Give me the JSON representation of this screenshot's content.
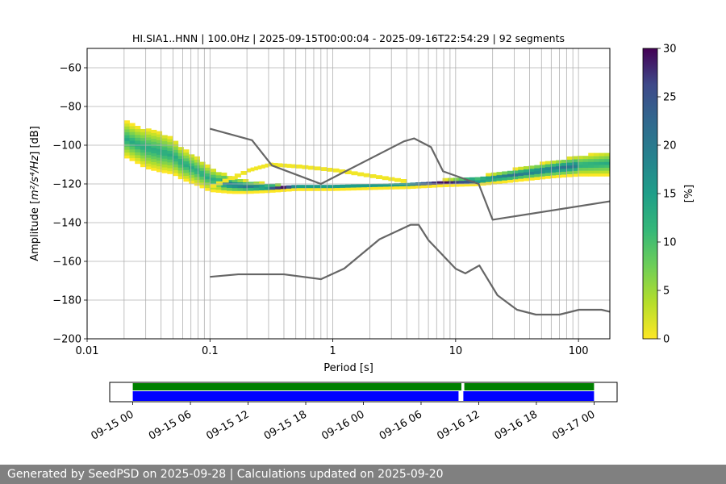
{
  "chart_data": [
    {
      "type": "heatmap",
      "title": "HI.SIA1..HNN | 100.0Hz | 2025-09-15T00:00:04 - 2025-09-16T22:54:29 | 92 segments",
      "xlabel": "Period [s]",
      "ylabel_prefix": "Amplitude [",
      "ylabel_suffix": "] [dB]",
      "ylabel_units": "m²/s⁴/Hz",
      "x_scale": "log",
      "xlim": [
        0.01,
        180
      ],
      "ylim": [
        -200,
        -50
      ],
      "x_ticks": [
        {
          "value": 0.01,
          "label": "0.01"
        },
        {
          "value": 0.1,
          "label": "0.1"
        },
        {
          "value": 1,
          "label": "1"
        },
        {
          "value": 10,
          "label": "10"
        },
        {
          "value": 100,
          "label": "100"
        }
      ],
      "y_ticks": [
        {
          "value": -60,
          "label": "−60"
        },
        {
          "value": -80,
          "label": "−80"
        },
        {
          "value": -100,
          "label": "−100"
        },
        {
          "value": -120,
          "label": "−120"
        },
        {
          "value": -140,
          "label": "−140"
        },
        {
          "value": -160,
          "label": "−160"
        },
        {
          "value": -180,
          "label": "−180"
        },
        {
          "value": -200,
          "label": "−200"
        }
      ],
      "grid": "vertical lines at every log-decade subdivision; horizontal at y ticks",
      "colormap": "viridis_r",
      "colorbar": {
        "label": "[%]",
        "range": [
          0,
          30
        ],
        "ticks": [
          {
            "value": 0,
            "label": "0"
          },
          {
            "value": 5,
            "label": "5"
          },
          {
            "value": 10,
            "label": "10"
          },
          {
            "value": 15,
            "label": "15"
          },
          {
            "value": 20,
            "label": "20"
          },
          {
            "value": 25,
            "label": "25"
          },
          {
            "value": 30,
            "label": "30"
          }
        ]
      },
      "psd_density": [
        {
          "period": 0.02,
          "mode": -97,
          "spread": 9
        },
        {
          "period": 0.025,
          "mode": -100,
          "spread": 9
        },
        {
          "period": 0.03,
          "mode": -102,
          "spread": 10
        },
        {
          "period": 0.04,
          "mode": -104,
          "spread": 10
        },
        {
          "period": 0.05,
          "mode": -106,
          "spread": 9
        },
        {
          "period": 0.06,
          "mode": -110,
          "spread": 8
        },
        {
          "period": 0.08,
          "mode": -114,
          "spread": 7
        },
        {
          "period": 0.1,
          "mode": -118,
          "spread": 6
        },
        {
          "period": 0.15,
          "mode": -121,
          "spread": 4
        },
        {
          "period": 0.2,
          "mode": -122,
          "spread": 3
        },
        {
          "period": 0.3,
          "mode": -122.5,
          "spread": 2
        },
        {
          "period": 0.5,
          "mode": -122.5,
          "spread": 1
        },
        {
          "period": 1,
          "mode": -122.5,
          "spread": 1
        },
        {
          "period": 2,
          "mode": -122,
          "spread": 1
        },
        {
          "period": 4,
          "mode": -121.5,
          "spread": 1
        },
        {
          "period": 8,
          "mode": -120,
          "spread": 1.5
        },
        {
          "period": 15,
          "mode": -119,
          "spread": 2
        },
        {
          "period": 30,
          "mode": -116,
          "spread": 3
        },
        {
          "period": 60,
          "mode": -113,
          "spread": 4
        },
        {
          "period": 100,
          "mode": -111,
          "spread": 5
        },
        {
          "period": 180,
          "mode": -110,
          "spread": 6
        }
      ],
      "psd_outlier": [
        {
          "period": 0.1,
          "value": -121
        },
        {
          "period": 0.2,
          "value": -113
        },
        {
          "period": 0.3,
          "value": -110
        },
        {
          "period": 0.5,
          "value": -111
        },
        {
          "period": 1,
          "value": -113
        },
        {
          "period": 2,
          "value": -116
        },
        {
          "period": 4,
          "value": -119
        }
      ],
      "series": [
        {
          "name": "NHNM",
          "color": "#666666",
          "points": [
            [
              0.1,
              -91.5
            ],
            [
              0.22,
              -97.4
            ],
            [
              0.32,
              -110.5
            ],
            [
              0.8,
              -120
            ],
            [
              3.8,
              -98
            ],
            [
              4.6,
              -96.5
            ],
            [
              6.3,
              -101
            ],
            [
              7.9,
              -113.5
            ],
            [
              15.4,
              -120
            ],
            [
              20,
              -138.5
            ],
            [
              180,
              -129
            ]
          ]
        },
        {
          "name": "NLNM",
          "color": "#666666",
          "points": [
            [
              0.1,
              -168
            ],
            [
              0.17,
              -166.7
            ],
            [
              0.4,
              -166.7
            ],
            [
              0.8,
              -169.2
            ],
            [
              1.24,
              -163.7
            ],
            [
              2.4,
              -148.6
            ],
            [
              4.3,
              -141.1
            ],
            [
              5,
              -141.1
            ],
            [
              6,
              -149
            ],
            [
              10,
              -163.8
            ],
            [
              12,
              -166.2
            ],
            [
              15.6,
              -162.1
            ],
            [
              21.9,
              -177.5
            ],
            [
              31.6,
              -185
            ],
            [
              45,
              -187.5
            ],
            [
              70,
              -187.5
            ],
            [
              101,
              -185
            ],
            [
              154,
              -185
            ],
            [
              180,
              -186
            ]
          ]
        }
      ]
    },
    {
      "type": "timeline",
      "x_ticks": [
        {
          "hours": 0,
          "label": "09-15 00"
        },
        {
          "hours": 6,
          "label": "09-15 06"
        },
        {
          "hours": 12,
          "label": "09-15 12"
        },
        {
          "hours": 18,
          "label": "09-15 18"
        },
        {
          "hours": 24,
          "label": "09-16 00"
        },
        {
          "hours": 30,
          "label": "09-16 06"
        },
        {
          "hours": 36,
          "label": "09-16 12"
        },
        {
          "hours": 42,
          "label": "09-16 18"
        },
        {
          "hours": 48,
          "label": "09-17 00"
        }
      ],
      "xlim_hours": [
        -2.4,
        50.4
      ],
      "data_segments": [
        {
          "start": 0,
          "end": 34.2
        },
        {
          "start": 34.5,
          "end": 48
        }
      ],
      "psd_segments": [
        {
          "start": 0,
          "end": 33.9
        },
        {
          "start": 34.4,
          "end": 48
        }
      ],
      "colors": {
        "data": "#008000",
        "psd": "#0000ff"
      }
    }
  ],
  "footer": {
    "text": "Generated by SeedPSD on 2025-09-28 | Calculations updated on 2025-09-20"
  }
}
